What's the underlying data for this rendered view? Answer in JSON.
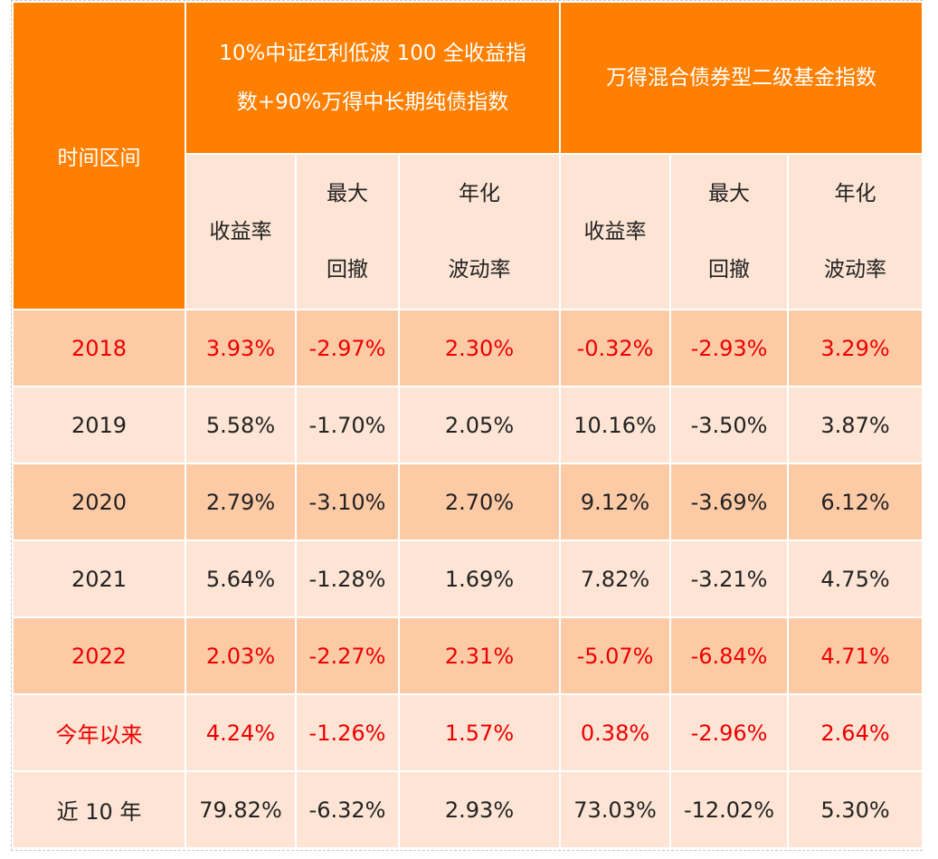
{
  "header": {
    "period": "时间区间",
    "group1_line1": "10%中证红利低波 100 全收益指",
    "group1_line2": "数+90%万得中长期纯债指数",
    "group2": "万得混合债券型二级基金指数",
    "col_return": "收益率",
    "col_drawdown_1": "最大",
    "col_drawdown_2": "回撤",
    "col_vol_1": "年化",
    "col_vol_2": "波动率"
  },
  "rows": [
    {
      "label": "2018",
      "v": [
        "3.93%",
        "-2.97%",
        "2.30%",
        "-0.32%",
        "-2.93%",
        "3.29%"
      ]
    },
    {
      "label": "2019",
      "v": [
        "5.58%",
        "-1.70%",
        "2.05%",
        "10.16%",
        "-3.50%",
        "3.87%"
      ]
    },
    {
      "label": "2020",
      "v": [
        "2.79%",
        "-3.10%",
        "2.70%",
        "9.12%",
        "-3.69%",
        "6.12%"
      ]
    },
    {
      "label": "2021",
      "v": [
        "5.64%",
        "-1.28%",
        "1.69%",
        "7.82%",
        "-3.21%",
        "4.75%"
      ]
    },
    {
      "label": "2022",
      "v": [
        "2.03%",
        "-2.27%",
        "2.31%",
        "-5.07%",
        "-6.84%",
        "4.71%"
      ]
    },
    {
      "label": "今年以来",
      "v": [
        "4.24%",
        "-1.26%",
        "1.57%",
        "0.38%",
        "-2.96%",
        "2.64%"
      ]
    },
    {
      "label": "近 10 年",
      "v": [
        "79.82%",
        "-6.32%",
        "2.93%",
        "73.03%",
        "-12.02%",
        "5.30%"
      ]
    }
  ],
  "colors": {
    "header_orange": "#ff7f00",
    "row_dark": "#fdcaa6",
    "row_light": "#fde4d4",
    "highlight_text": "#ee0000"
  }
}
